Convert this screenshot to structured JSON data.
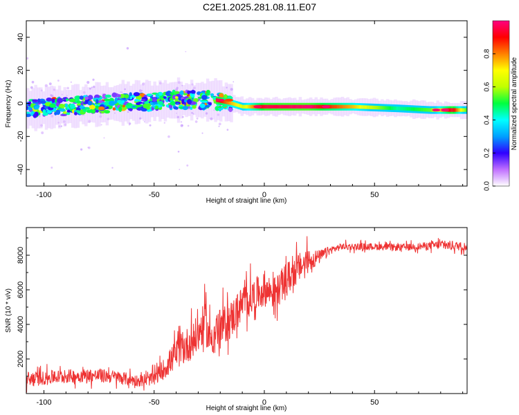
{
  "figure_title": "C2E1.2025.281.08.11.E07",
  "chart_data": [
    {
      "id": "spectrogram",
      "type": "heatmap",
      "title": "",
      "xlabel": "Height of straight line (km)",
      "ylabel": "Frequency (Hz)",
      "xlim": [
        -108,
        92
      ],
      "ylim": [
        -50,
        50
      ],
      "xticks": [
        -100,
        -50,
        0,
        50
      ],
      "yticks": [
        -40,
        -20,
        0,
        20,
        40
      ],
      "xtick_labels": [
        "-100",
        "-50",
        "0",
        "50"
      ],
      "ytick_labels": [
        "-40",
        "-20",
        "0",
        "20",
        "40"
      ],
      "colorbar": {
        "label": "Normalized spectral amplitude",
        "range": [
          0,
          1
        ],
        "ticks": [
          0.0,
          0.2,
          0.4,
          0.6,
          0.8
        ],
        "tick_labels": [
          "0.0",
          "0.2",
          "0.4",
          "0.6",
          "0.8"
        ],
        "colors": [
          "#ffffff",
          "#c070ff",
          "#3000ff",
          "#00a0ff",
          "#00ffff",
          "#00ff40",
          "#c0ff00",
          "#ffff00",
          "#ff8000",
          "#ff0000",
          "#ff0080"
        ]
      },
      "ridge": {
        "x": [
          -108,
          -90,
          -70,
          -55,
          -40,
          -30,
          -22,
          -15,
          -10,
          0,
          20,
          40,
          60,
          75,
          85,
          92
        ],
        "center_hz": [
          -3,
          -2,
          0,
          1,
          2,
          2,
          2,
          0,
          -2,
          -2,
          -2,
          -2,
          -3,
          -4,
          -4,
          -4
        ],
        "amplitude": [
          0.35,
          0.4,
          0.45,
          0.5,
          0.5,
          0.55,
          0.95,
          0.75,
          0.65,
          0.95,
          0.98,
          0.75,
          0.45,
          0.55,
          0.95,
          0.5
        ]
      }
    },
    {
      "id": "snr",
      "type": "line",
      "title": "",
      "xlabel": "Height of straight line (km)",
      "ylabel": "SNR (10 * v/v)",
      "xlim": [
        -108,
        92
      ],
      "ylim": [
        0,
        9600
      ],
      "xticks": [
        -100,
        -50,
        0,
        50
      ],
      "yticks": [
        2000,
        4000,
        6000,
        8000
      ],
      "xtick_labels": [
        "-100",
        "-50",
        "0",
        "50"
      ],
      "ytick_labels": [
        "2000",
        "4000",
        "6000",
        "8000"
      ],
      "color": "#ee3333",
      "series": [
        {
          "name": "SNR",
          "x": [
            -108,
            -100,
            -90,
            -80,
            -70,
            -60,
            -55,
            -50,
            -45,
            -40,
            -35,
            -30,
            -27,
            -25,
            -20,
            -15,
            -10,
            -5,
            0,
            5,
            10,
            15,
            20,
            25,
            30,
            35,
            40,
            50,
            60,
            70,
            80,
            85,
            92
          ],
          "values": [
            800,
            900,
            1000,
            1050,
            1000,
            800,
            700,
            900,
            1500,
            2300,
            2800,
            3400,
            4200,
            3200,
            3800,
            4300,
            5200,
            5600,
            6000,
            5800,
            6600,
            7200,
            7700,
            7900,
            8300,
            8500,
            8500,
            8500,
            8450,
            8500,
            8600,
            8550,
            8500
          ],
          "noise_amplitude": [
            600,
            500,
            500,
            500,
            500,
            450,
            400,
            500,
            800,
            1100,
            1300,
            1400,
            1400,
            1400,
            1400,
            1400,
            1300,
            1300,
            1200,
            1200,
            1200,
            1100,
            900,
            500,
            300,
            250,
            250,
            250,
            250,
            250,
            350,
            350,
            300
          ]
        }
      ]
    }
  ]
}
